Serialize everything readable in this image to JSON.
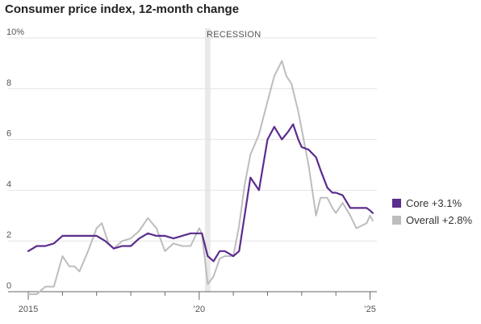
{
  "chart_data": {
    "type": "line",
    "title": "Consumer price index, 12-month change",
    "xlabel": "",
    "ylabel": "",
    "xlim": [
      2015.0,
      2025.2
    ],
    "ylim": [
      0,
      10
    ],
    "y_ticks": [
      {
        "value": 0,
        "label": "0"
      },
      {
        "value": 2,
        "label": "2"
      },
      {
        "value": 4,
        "label": "4"
      },
      {
        "value": 6,
        "label": "6"
      },
      {
        "value": 8,
        "label": "8"
      },
      {
        "value": 10,
        "label": "10%"
      }
    ],
    "x_ticks": [
      {
        "value": 2015,
        "label": "2015"
      },
      {
        "value": 2016,
        "label": ""
      },
      {
        "value": 2017,
        "label": ""
      },
      {
        "value": 2018,
        "label": ""
      },
      {
        "value": 2019,
        "label": ""
      },
      {
        "value": 2020,
        "label": "’20"
      },
      {
        "value": 2021,
        "label": ""
      },
      {
        "value": 2022,
        "label": ""
      },
      {
        "value": 2023,
        "label": ""
      },
      {
        "value": 2024,
        "label": ""
      },
      {
        "value": 2025,
        "label": "’25"
      }
    ],
    "grid": true,
    "legend_position": "right",
    "annotations": [
      {
        "label": "RECESSION",
        "x_start": 2020.17,
        "x_end": 2020.33
      }
    ],
    "series": [
      {
        "name": "Overall",
        "legend_label": "Overall +2.8%",
        "color": "#bdbdbd",
        "x": [
          2015.0,
          2015.25,
          2015.5,
          2015.75,
          2016.0,
          2016.2,
          2016.35,
          2016.5,
          2016.75,
          2017.0,
          2017.15,
          2017.35,
          2017.5,
          2017.75,
          2018.0,
          2018.25,
          2018.5,
          2018.75,
          2019.0,
          2019.25,
          2019.5,
          2019.75,
          2020.0,
          2020.08,
          2020.25,
          2020.42,
          2020.6,
          2020.75,
          2021.0,
          2021.17,
          2021.33,
          2021.5,
          2021.75,
          2022.0,
          2022.2,
          2022.42,
          2022.55,
          2022.7,
          2022.9,
          2023.0,
          2023.2,
          2023.42,
          2023.55,
          2023.75,
          2023.9,
          2024.0,
          2024.2,
          2024.42,
          2024.6,
          2024.75,
          2024.9,
          2025.0,
          2025.08
        ],
        "y": [
          -0.1,
          -0.1,
          0.2,
          0.2,
          1.4,
          1.0,
          1.0,
          0.8,
          1.6,
          2.5,
          2.7,
          1.9,
          1.7,
          2.0,
          2.1,
          2.4,
          2.9,
          2.5,
          1.6,
          1.9,
          1.8,
          1.8,
          2.5,
          2.3,
          0.3,
          0.6,
          1.3,
          1.4,
          1.4,
          2.6,
          4.2,
          5.4,
          6.2,
          7.5,
          8.5,
          9.1,
          8.5,
          8.2,
          7.1,
          6.4,
          5.0,
          3.0,
          3.7,
          3.7,
          3.3,
          3.1,
          3.5,
          3.0,
          2.5,
          2.6,
          2.7,
          3.0,
          2.8
        ]
      },
      {
        "name": "Core",
        "legend_label": "Core +3.1%",
        "color": "#5b2d8e",
        "x": [
          2015.0,
          2015.25,
          2015.5,
          2015.75,
          2016.0,
          2016.25,
          2016.5,
          2016.75,
          2017.0,
          2017.25,
          2017.5,
          2017.75,
          2018.0,
          2018.25,
          2018.5,
          2018.75,
          2019.0,
          2019.25,
          2019.5,
          2019.75,
          2020.0,
          2020.08,
          2020.25,
          2020.42,
          2020.6,
          2020.75,
          2021.0,
          2021.17,
          2021.33,
          2021.5,
          2021.75,
          2022.0,
          2022.2,
          2022.42,
          2022.6,
          2022.75,
          2022.9,
          2023.0,
          2023.2,
          2023.42,
          2023.55,
          2023.75,
          2023.9,
          2024.0,
          2024.2,
          2024.42,
          2024.6,
          2024.75,
          2024.9,
          2025.0,
          2025.08
        ],
        "y": [
          1.6,
          1.8,
          1.8,
          1.9,
          2.2,
          2.2,
          2.2,
          2.2,
          2.2,
          2.0,
          1.7,
          1.8,
          1.8,
          2.1,
          2.3,
          2.2,
          2.2,
          2.1,
          2.2,
          2.3,
          2.3,
          2.3,
          1.4,
          1.2,
          1.6,
          1.6,
          1.4,
          1.6,
          3.0,
          4.5,
          4.0,
          6.0,
          6.5,
          6.0,
          6.3,
          6.6,
          6.0,
          5.7,
          5.6,
          5.3,
          4.8,
          4.1,
          3.9,
          3.9,
          3.8,
          3.3,
          3.3,
          3.3,
          3.3,
          3.2,
          3.1
        ]
      }
    ]
  }
}
